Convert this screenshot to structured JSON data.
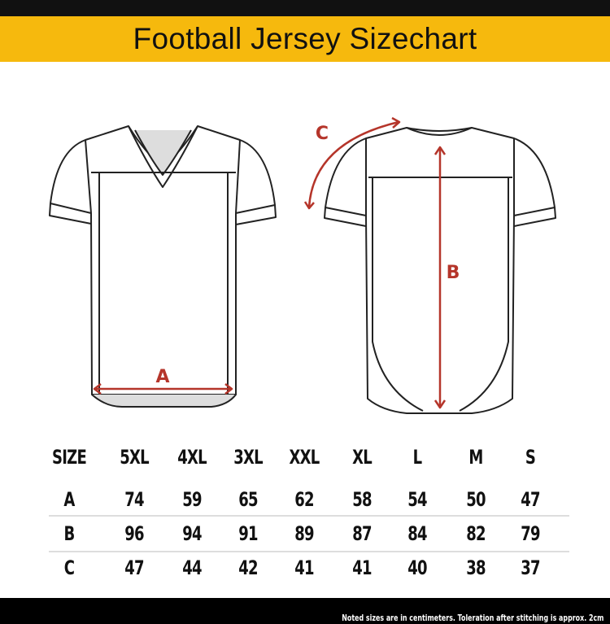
{
  "title": "Football Jersey Sizechart",
  "labels": {
    "a": "A",
    "b": "B",
    "c": "C"
  },
  "colors": {
    "banner": "#f6b90d",
    "arrow": "#b5352a",
    "footer": "#000000"
  },
  "table": {
    "header": [
      "SIZE",
      "5XL",
      "4XL",
      "3XL",
      "XXL",
      "XL",
      "L",
      "M",
      "S"
    ],
    "rows": [
      [
        "A",
        "74",
        "59",
        "65",
        "62",
        "58",
        "54",
        "50",
        "47"
      ],
      [
        "B",
        "96",
        "94",
        "91",
        "89",
        "87",
        "84",
        "82",
        "79"
      ],
      [
        "C",
        "47",
        "44",
        "42",
        "41",
        "41",
        "40",
        "38",
        "37"
      ]
    ]
  },
  "footer_note": "Noted sizes are in centimeters. Toleration after stitching is approx. 2cm"
}
